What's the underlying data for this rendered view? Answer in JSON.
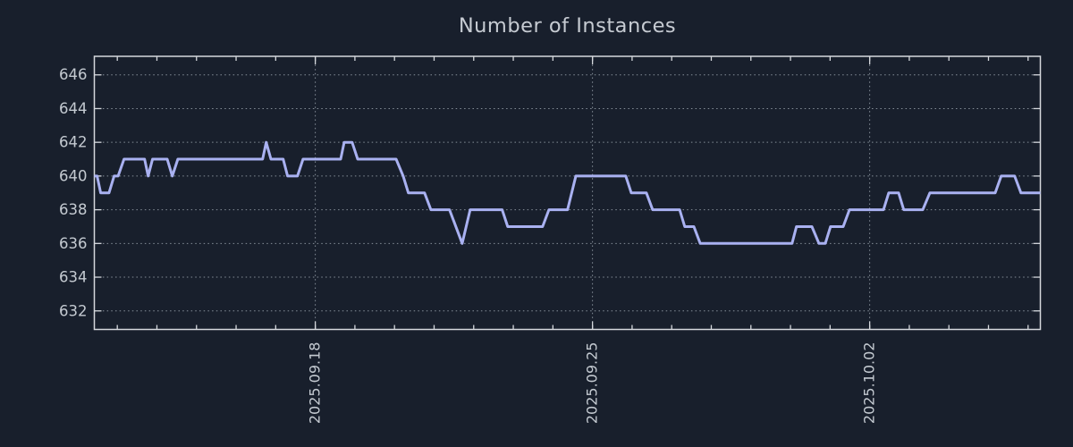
{
  "title": "Number of Instances",
  "colors": {
    "background": "#181f2c",
    "line": "#a9b1f1",
    "axis": "#d5d8dd",
    "grid": "#9aa3ad",
    "text": "#c4cad1"
  },
  "chart_data": {
    "type": "line",
    "title": "Number of Instances",
    "xlabel": "",
    "ylabel": "",
    "grid": "dotted",
    "legend": "none",
    "x_axis": {
      "unit": "days from left edge of plot",
      "range": [
        0,
        23.89
      ],
      "major_ticks": [
        {
          "x": 5.58,
          "label": "2025.09.18"
        },
        {
          "x": 12.58,
          "label": "2025.09.25"
        },
        {
          "x": 19.58,
          "label": "2025.10.02"
        }
      ],
      "minor_tick_start": 0.58,
      "minor_tick_step": 1
    },
    "y_axis": {
      "range": [
        630.9,
        647.1
      ],
      "ticks": [
        632,
        634,
        636,
        638,
        640,
        642,
        644,
        646
      ]
    },
    "series": [
      {
        "name": "Number of Instances",
        "points": [
          [
            0.0,
            640
          ],
          [
            0.07,
            640
          ],
          [
            0.16,
            639
          ],
          [
            0.37,
            639
          ],
          [
            0.5,
            640
          ],
          [
            0.6,
            640
          ],
          [
            0.75,
            641
          ],
          [
            1.27,
            641
          ],
          [
            1.36,
            640
          ],
          [
            1.47,
            641
          ],
          [
            1.84,
            641
          ],
          [
            1.97,
            640
          ],
          [
            2.11,
            641
          ],
          [
            4.25,
            641
          ],
          [
            4.34,
            642
          ],
          [
            4.46,
            641
          ],
          [
            4.77,
            641
          ],
          [
            4.88,
            640
          ],
          [
            5.13,
            640
          ],
          [
            5.27,
            641
          ],
          [
            6.22,
            641
          ],
          [
            6.31,
            642
          ],
          [
            6.51,
            642
          ],
          [
            6.65,
            641
          ],
          [
            7.62,
            641
          ],
          [
            7.8,
            640
          ],
          [
            7.93,
            639
          ],
          [
            8.34,
            639
          ],
          [
            8.5,
            638
          ],
          [
            8.97,
            638
          ],
          [
            9.29,
            636
          ],
          [
            9.49,
            638
          ],
          [
            10.3,
            638
          ],
          [
            10.44,
            637
          ],
          [
            11.32,
            637
          ],
          [
            11.48,
            638
          ],
          [
            11.95,
            638
          ],
          [
            12.16,
            640
          ],
          [
            13.42,
            640
          ],
          [
            13.56,
            639
          ],
          [
            13.94,
            639
          ],
          [
            14.1,
            638
          ],
          [
            14.78,
            638
          ],
          [
            14.91,
            637
          ],
          [
            15.14,
            637
          ],
          [
            15.3,
            636
          ],
          [
            17.62,
            636
          ],
          [
            17.73,
            637
          ],
          [
            18.12,
            637
          ],
          [
            18.3,
            636
          ],
          [
            18.46,
            636
          ],
          [
            18.59,
            637
          ],
          [
            18.91,
            637
          ],
          [
            19.07,
            638
          ],
          [
            19.93,
            638
          ],
          [
            20.06,
            639
          ],
          [
            20.31,
            639
          ],
          [
            20.44,
            638
          ],
          [
            20.92,
            638
          ],
          [
            21.1,
            639
          ],
          [
            22.75,
            639
          ],
          [
            22.9,
            640
          ],
          [
            23.24,
            640
          ],
          [
            23.4,
            639
          ],
          [
            23.89,
            639
          ]
        ]
      }
    ]
  }
}
